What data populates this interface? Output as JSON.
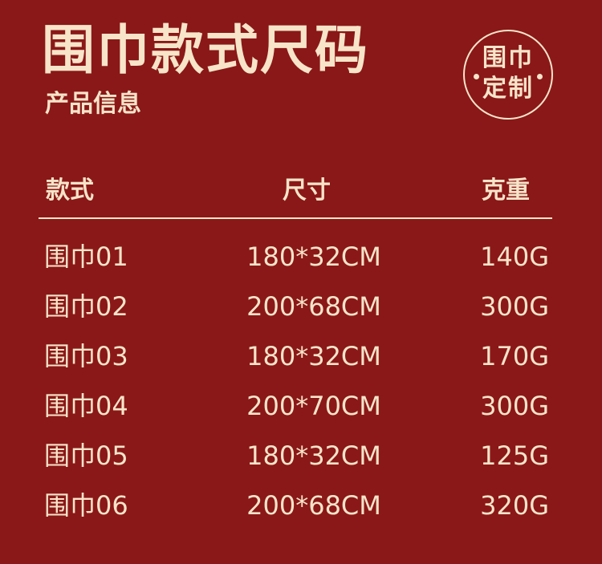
{
  "title": "围巾款式尺码",
  "subtitle": "产品信息",
  "badge": {
    "line1": "围巾",
    "line2": "定制"
  },
  "table": {
    "headers": [
      "款式",
      "尺寸",
      "克重"
    ],
    "rows": [
      [
        "围巾01",
        "180*32CM",
        "140G"
      ],
      [
        "围巾02",
        "200*68CM",
        "300G"
      ],
      [
        "围巾03",
        "180*32CM",
        "170G"
      ],
      [
        "围巾04",
        "200*70CM",
        "300G"
      ],
      [
        "围巾05",
        "180*32CM",
        "125G"
      ],
      [
        "围巾06",
        "200*68CM",
        "320G"
      ]
    ]
  },
  "colors": {
    "background": "#8a1818",
    "text": "#f7e4c9"
  }
}
